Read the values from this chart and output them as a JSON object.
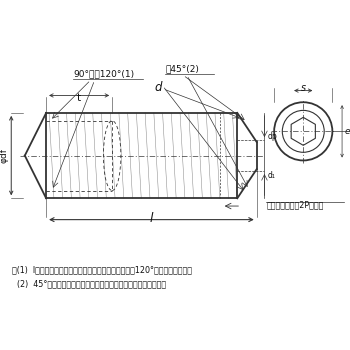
{
  "bg_color": "#ffffff",
  "line_color": "#333333",
  "text_color": "#111111",
  "note1": "注(1)  lが下の表に示す階段状の点線より短いものは、120°の面取りとする。",
  "note2": "  (2)  45°の角度は、おねじの谷の径より下の傾斜部に適用する。",
  "label_90": "90°又は120°(1)",
  "label_45": "絀45°(2)",
  "label_t": "t",
  "label_d": "d",
  "label_phi_df": "φdf",
  "label_dp": "dp",
  "label_d1": "d₁",
  "label_l": "l",
  "label_e": "e",
  "label_s": "s",
  "label_incomplete": "不完全ねじ部（2P以下）"
}
